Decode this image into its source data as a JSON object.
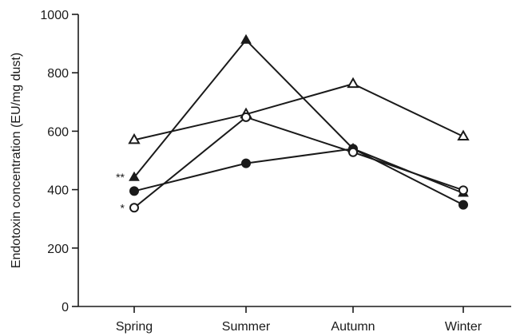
{
  "chart_data": {
    "type": "line",
    "title": "",
    "xlabel": "",
    "ylabel": "Endotoxin concentration (EU/mg dust)",
    "categories": [
      "Spring",
      "Summer",
      "Autumn",
      "Winter"
    ],
    "ylim": [
      0,
      1000
    ],
    "yticks": [
      0,
      200,
      400,
      600,
      800,
      1000
    ],
    "ytick_labels": [
      "0",
      "200",
      "400",
      "600",
      "800",
      "1000"
    ],
    "grid": false,
    "legend": "none",
    "series": [
      {
        "marker": "open-triangle",
        "values": [
          570,
          658,
          762,
          582
        ]
      },
      {
        "marker": "filled-triangle",
        "values": [
          442,
          912,
          540,
          388
        ]
      },
      {
        "marker": "filled-circle",
        "values": [
          395,
          490,
          540,
          348
        ]
      },
      {
        "marker": "open-circle",
        "values": [
          338,
          648,
          528,
          398
        ]
      }
    ],
    "annotations": [
      {
        "text": "**",
        "category": "Spring",
        "value": 442
      },
      {
        "text": "*",
        "category": "Spring",
        "value": 338
      }
    ]
  }
}
